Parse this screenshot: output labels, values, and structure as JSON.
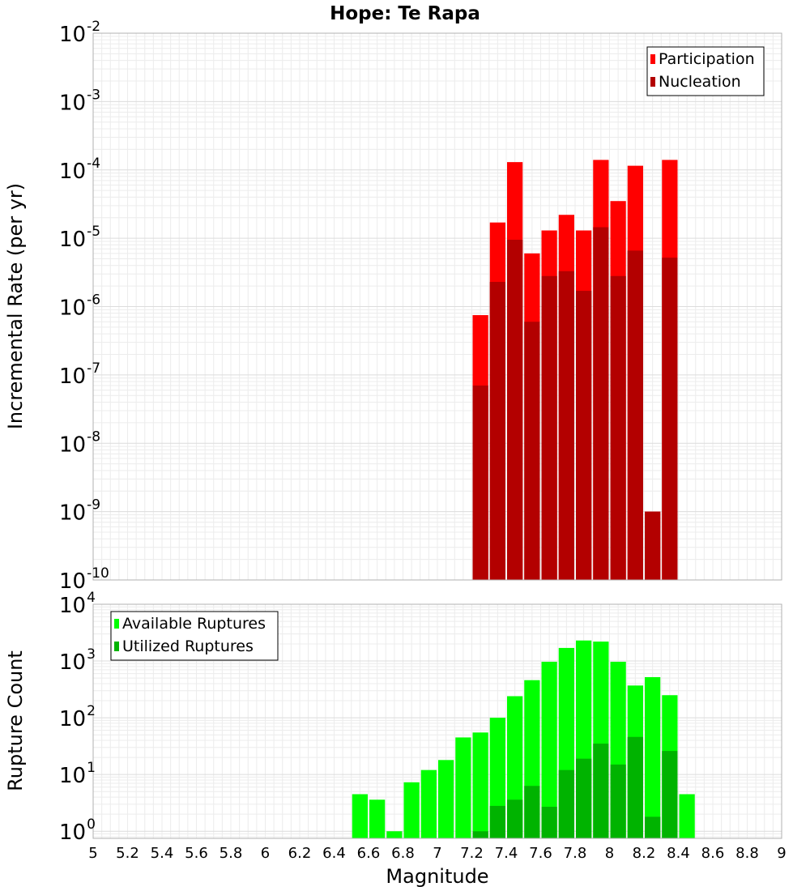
{
  "chart_data": [
    {
      "type": "bar",
      "title": "Hope: Te Rapa",
      "ylabel": "Incremental Rate (per yr)",
      "xlabel": "",
      "y_scale": "log",
      "ylim": [
        1e-10,
        0.01
      ],
      "xlim": [
        5,
        9
      ],
      "grid": true,
      "legend_position": "top-right",
      "bin_width": 0.1,
      "y_tick_labels": [
        {
          "base": "10",
          "exp": "-10",
          "value": 1e-10
        },
        {
          "base": "10",
          "exp": "-9",
          "value": 1e-09
        },
        {
          "base": "10",
          "exp": "-8",
          "value": 1e-08
        },
        {
          "base": "10",
          "exp": "-7",
          "value": 1e-07
        },
        {
          "base": "10",
          "exp": "-6",
          "value": 1e-06
        },
        {
          "base": "10",
          "exp": "-5",
          "value": 1e-05
        },
        {
          "base": "10",
          "exp": "-4",
          "value": 0.0001
        },
        {
          "base": "10",
          "exp": "-3",
          "value": 0.001
        },
        {
          "base": "10",
          "exp": "-2",
          "value": 0.01
        }
      ],
      "x": [
        7.25,
        7.35,
        7.45,
        7.55,
        7.65,
        7.75,
        7.85,
        7.95,
        8.05,
        8.15,
        8.25,
        8.35
      ],
      "series": [
        {
          "name": "Participation",
          "color": "#ff0000",
          "values": [
            7.5e-07,
            1.7e-05,
            0.00013,
            6e-06,
            1.3e-05,
            2.2e-05,
            1.3e-05,
            0.00014,
            3.5e-05,
            0.000115,
            1e-09,
            0.00014
          ]
        },
        {
          "name": "Nucleation",
          "color": "#b30000",
          "values": [
            7e-08,
            2.3e-06,
            9.5e-06,
            6e-07,
            2.8e-06,
            3.3e-06,
            1.7e-06,
            1.45e-05,
            2.8e-06,
            6.6e-06,
            1e-09,
            5.2e-06
          ]
        }
      ]
    },
    {
      "type": "bar",
      "title": "",
      "ylabel": "Rupture Count",
      "xlabel": "Magnitude",
      "y_scale": "log",
      "ylim": [
        0.75,
        10000
      ],
      "xlim": [
        5,
        9
      ],
      "grid": true,
      "legend_position": "top-left",
      "bin_width": 0.1,
      "y_tick_labels": [
        {
          "base": "10",
          "exp": "0",
          "value": 1
        },
        {
          "base": "10",
          "exp": "1",
          "value": 10
        },
        {
          "base": "10",
          "exp": "2",
          "value": 100
        },
        {
          "base": "10",
          "exp": "3",
          "value": 1000
        },
        {
          "base": "10",
          "exp": "4",
          "value": 10000
        }
      ],
      "x_tick_labels": [
        "5",
        "5.2",
        "5.4",
        "5.6",
        "5.8",
        "6",
        "6.2",
        "6.4",
        "6.6",
        "6.8",
        "7",
        "7.2",
        "7.4",
        "7.6",
        "7.8",
        "8",
        "8.2",
        "8.4",
        "8.6",
        "8.8",
        "9"
      ],
      "x": [
        6.55,
        6.65,
        6.75,
        6.85,
        6.95,
        7.05,
        7.15,
        7.25,
        7.35,
        7.45,
        7.55,
        7.65,
        7.75,
        7.85,
        7.95,
        8.05,
        8.15,
        8.25,
        8.35,
        8.45
      ],
      "series": [
        {
          "name": "Available Ruptures",
          "color": "#00ff00",
          "values": [
            4.5,
            3.6,
            1,
            7.3,
            12,
            18,
            45,
            55,
            100,
            240,
            460,
            970,
            1700,
            2300,
            2200,
            970,
            370,
            520,
            250,
            4.5
          ]
        },
        {
          "name": "Utilized Ruptures",
          "color": "#00b300",
          "values": [
            0,
            0,
            0,
            0,
            0,
            0,
            0,
            1,
            2.8,
            3.6,
            6.3,
            2.7,
            12,
            19,
            35,
            15,
            46,
            1.8,
            26,
            0
          ]
        }
      ]
    }
  ]
}
